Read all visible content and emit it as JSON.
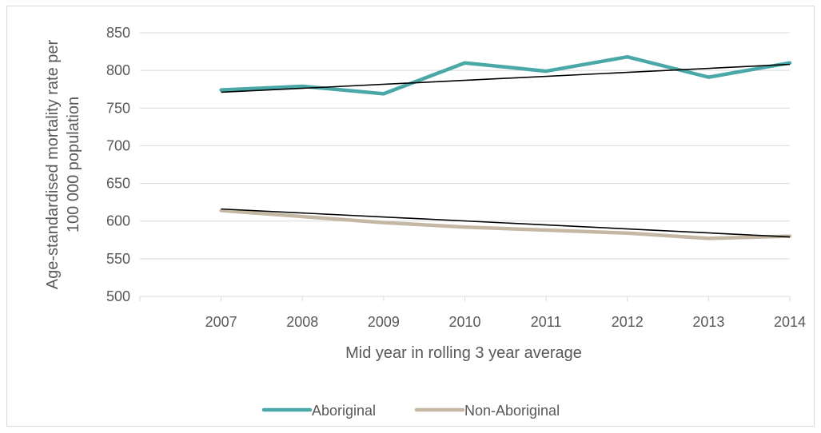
{
  "chart_data": {
    "type": "line",
    "title": "",
    "xlabel": "Mid year in rolling 3 year average",
    "ylabel_lines": [
      "Age-standardised mortality rate per",
      "100 000 population"
    ],
    "categories": [
      "2007",
      "2008",
      "2009",
      "2010",
      "2011",
      "2012",
      "2013",
      "2014"
    ],
    "ylim": [
      500,
      850
    ],
    "yticks": [
      500,
      550,
      600,
      650,
      700,
      750,
      800,
      850
    ],
    "grid": true,
    "legend_position": "bottom",
    "series": [
      {
        "name": "Aboriginal",
        "color": "#4aa8a8",
        "values": [
          774,
          779,
          769,
          810,
          799,
          818,
          791,
          810
        ]
      },
      {
        "name": "Non-Aboriginal",
        "color": "#c4b8a4",
        "values": [
          614,
          606,
          598,
          592,
          588,
          584,
          577,
          580
        ]
      }
    ],
    "trendlines": [
      {
        "series": "Aboriginal",
        "color": "#000000",
        "start": 771,
        "end": 808
      },
      {
        "series": "Non-Aboriginal",
        "color": "#000000",
        "start": 616,
        "end": 579
      }
    ]
  }
}
